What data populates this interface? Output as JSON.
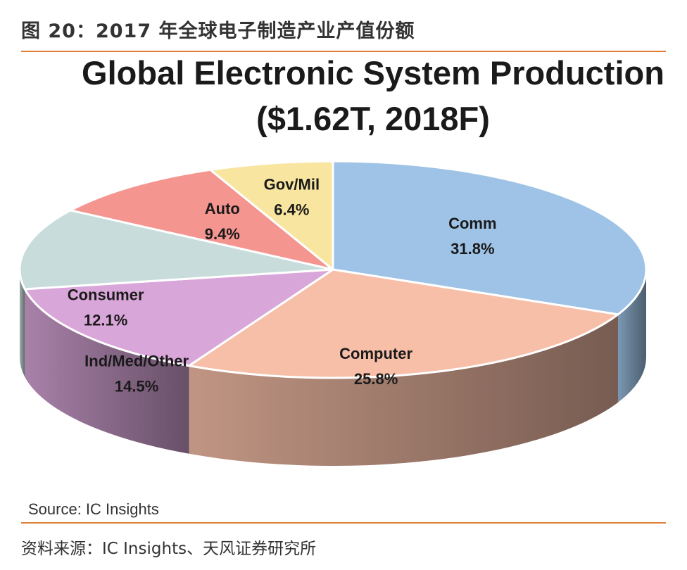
{
  "figure": {
    "caption": "图 20：2017 年全球电子制造产业产值份额",
    "source_note": "资料来源：IC Insights、天风证券研究所"
  },
  "chart_data": {
    "type": "pie",
    "title": "Global Electronic System Production",
    "subtitle": "($1.62T, 2018F)",
    "source": "Source:  IC Insights",
    "unit": "%",
    "slices": [
      {
        "label": "Comm",
        "value": 31.8,
        "value_text": "31.8%",
        "color": "#9ec3e6"
      },
      {
        "label": "Computer",
        "value": 25.8,
        "value_text": "25.8%",
        "color": "#f7bfa8"
      },
      {
        "label": "Ind/Med/Other",
        "value": 14.5,
        "value_text": "14.5%",
        "color": "#d9a6d9"
      },
      {
        "label": "Consumer",
        "value": 12.1,
        "value_text": "12.1%",
        "color": "#c8dcdc"
      },
      {
        "label": "Auto",
        "value": 9.4,
        "value_text": "9.4%",
        "color": "#f49590"
      },
      {
        "label": "Gov/Mil",
        "value": 6.4,
        "value_text": "6.4%",
        "color": "#f8e6a0"
      }
    ]
  }
}
